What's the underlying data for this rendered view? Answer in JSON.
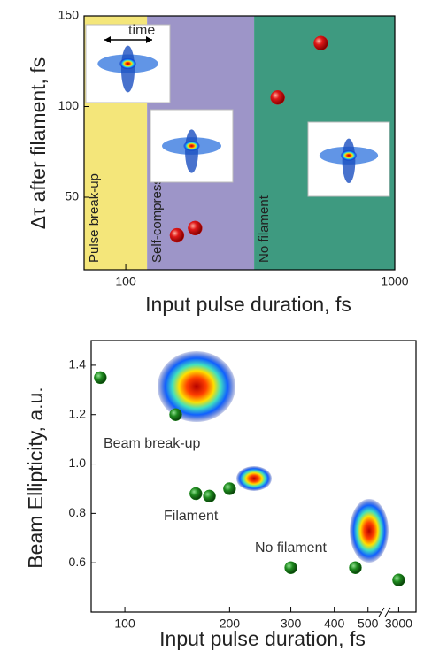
{
  "chart_data": [
    {
      "type": "scatter",
      "x_label": "Input pulse duration, fs",
      "y_label": "Δτ after filament, fs",
      "x_scale": "log",
      "xlim": [
        70,
        1000
      ],
      "xticks": [
        100,
        1000
      ],
      "ylim": [
        10,
        150
      ],
      "yticks": [
        50,
        100,
        150
      ],
      "regions": [
        {
          "label": "Pulse break-up",
          "from": 70,
          "to": 120,
          "color": "#f4e67a"
        },
        {
          "label": "Self-compression",
          "from": 120,
          "to": 300,
          "color": "#9d95c8"
        },
        {
          "label": "No filament",
          "from": 300,
          "to": 1000,
          "color": "#3e9a80"
        }
      ],
      "annotations": [
        "time"
      ],
      "x": [
        155,
        181,
        367,
        531
      ],
      "values": [
        29,
        33,
        105,
        135
      ],
      "color": "#d81414"
    },
    {
      "type": "scatter",
      "x_label": "Input pulse duration, fs",
      "y_label": "Beam Ellipticity, a.u.",
      "x_scale": "log",
      "x_segments": [
        [
          80,
          550
        ],
        [
          2500,
          4000
        ]
      ],
      "xticks": [
        100,
        200,
        300,
        400,
        500,
        3000
      ],
      "ylim": [
        0.4,
        1.5
      ],
      "yticks": [
        0.6,
        0.8,
        {
          "value": 1,
          "label": "1.0"
        },
        1.2,
        1.4
      ],
      "annotations": [
        "Beam break-up",
        "Filament",
        "No filament"
      ],
      "x": [
        85,
        140,
        160,
        175,
        200,
        300,
        460,
        3000
      ],
      "values": [
        1.35,
        1.2,
        0.88,
        0.87,
        0.9,
        0.58,
        0.58,
        0.53
      ],
      "color": "#1e8a1e"
    }
  ]
}
